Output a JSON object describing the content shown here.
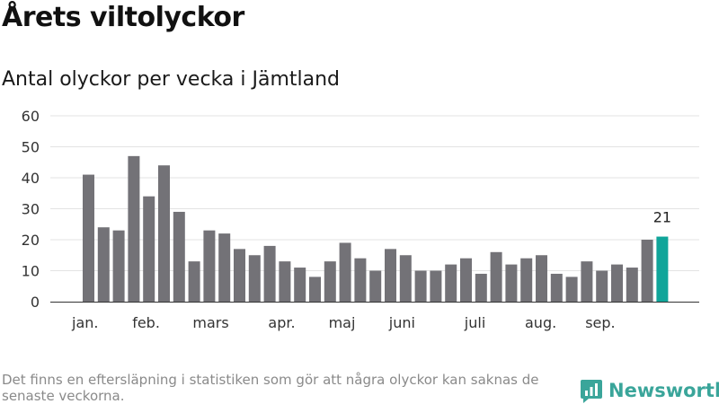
{
  "header": {
    "title": "Årets viltolyckor",
    "subtitle": "Antal olyckor per vecka i Jämtland"
  },
  "chart_data": {
    "type": "bar",
    "title": "Årets viltolyckor",
    "subtitle": "Antal olyckor per vecka i Jämtland",
    "values": [
      41,
      24,
      23,
      47,
      34,
      44,
      29,
      13,
      23,
      22,
      17,
      15,
      18,
      13,
      11,
      8,
      13,
      19,
      14,
      10,
      17,
      15,
      10,
      10,
      12,
      14,
      9,
      16,
      12,
      14,
      15,
      9,
      8,
      13,
      10,
      12,
      11,
      20,
      21
    ],
    "month_labels": [
      {
        "label": "jan.",
        "week_index": 0
      },
      {
        "label": "feb.",
        "week_index": 4
      },
      {
        "label": "mars",
        "week_index": 8
      },
      {
        "label": "apr.",
        "week_index": 13
      },
      {
        "label": "maj",
        "week_index": 17
      },
      {
        "label": "juni",
        "week_index": 21
      },
      {
        "label": "juli",
        "week_index": 26
      },
      {
        "label": "aug.",
        "week_index": 30
      },
      {
        "label": "sep.",
        "week_index": 34
      }
    ],
    "yticks": [
      0,
      10,
      20,
      30,
      40,
      50,
      60
    ],
    "ylim": [
      0,
      60
    ],
    "highlight_last": true,
    "last_label": "21",
    "grid": true,
    "colors": {
      "bar": "#737277",
      "highlight": "#10a59a",
      "grid": "#e3e3e3",
      "axis": "#333333"
    }
  },
  "footer": {
    "note": "Det finns en eftersläpning i statistiken som gör att några olyckor kan saknas de senaste veckorna.",
    "brand": "Newsworthy",
    "brand_color": "#3aa59a",
    "brand_icon": "bar-chart-bubble-icon"
  }
}
